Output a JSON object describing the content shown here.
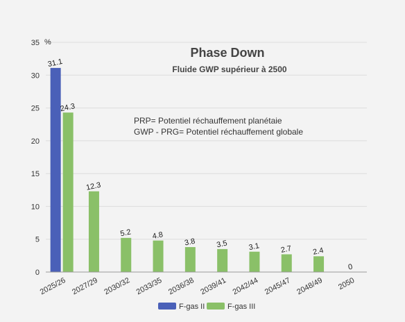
{
  "chart_data": {
    "type": "bar",
    "title": "Phase Down",
    "subtitle": "Fluide GWP supérieur à 2500",
    "ylabel": "%",
    "ylim": [
      0,
      35
    ],
    "yticks": [
      0,
      5,
      10,
      15,
      20,
      25,
      30,
      35
    ],
    "grid": true,
    "legend_position": "bottom-center",
    "categories": [
      "2025/26",
      "2027/29",
      "2030/32",
      "2033/35",
      "2036/38",
      "2039/41",
      "2042/44",
      "2045/47",
      "2048/49",
      "2050"
    ],
    "series": [
      {
        "name": "F-gas II",
        "color": "#4a60b8",
        "values": [
          31.1,
          null,
          null,
          null,
          null,
          null,
          null,
          null,
          null,
          null
        ]
      },
      {
        "name": "F-gas III",
        "color": "#8ac068",
        "values": [
          24.3,
          12.3,
          5.2,
          4.8,
          3.8,
          3.5,
          3.1,
          2.7,
          2.4,
          0
        ]
      }
    ],
    "annotations": [
      "PRP= Potentiel réchauffement planétaie",
      "GWP - PRG= Potentiel réchauffement globale"
    ]
  }
}
